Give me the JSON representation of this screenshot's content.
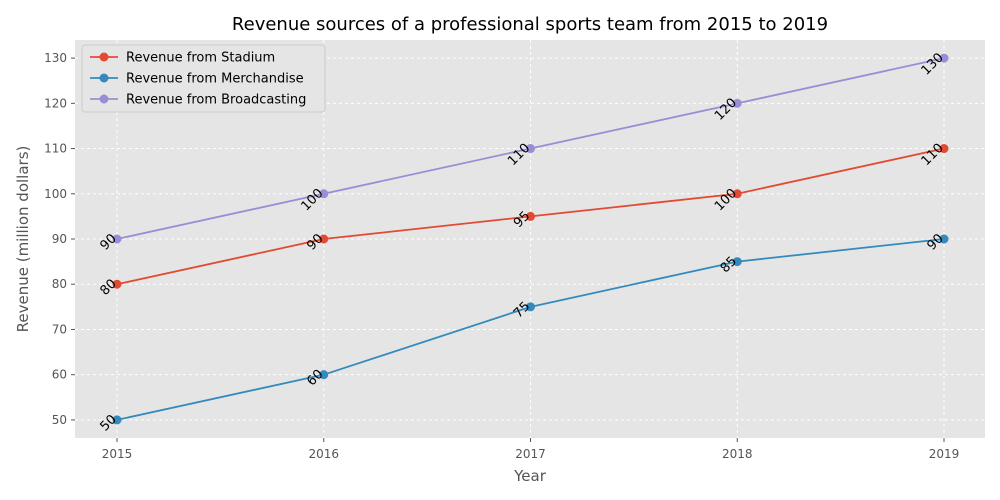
{
  "chart_data": {
    "type": "line",
    "title": "Revenue sources of a professional sports team from 2015 to 2019",
    "xlabel": "Year",
    "ylabel": "Revenue (million dollars)",
    "categories": [
      "2015",
      "2016",
      "2017",
      "2018",
      "2019"
    ],
    "ylim": [
      46,
      134
    ],
    "yticks": [
      50,
      60,
      70,
      80,
      90,
      100,
      110,
      120,
      130
    ],
    "grid": true,
    "legend_position": "top-left",
    "series": [
      {
        "name": "Revenue from Stadium",
        "color": "#E24A33",
        "values": [
          80,
          90,
          95,
          100,
          110
        ]
      },
      {
        "name": "Revenue from Merchandise",
        "color": "#348ABD",
        "values": [
          50,
          60,
          75,
          85,
          90
        ]
      },
      {
        "name": "Revenue from Broadcasting",
        "color": "#988ED5",
        "values": [
          90,
          100,
          110,
          120,
          130
        ]
      }
    ]
  }
}
